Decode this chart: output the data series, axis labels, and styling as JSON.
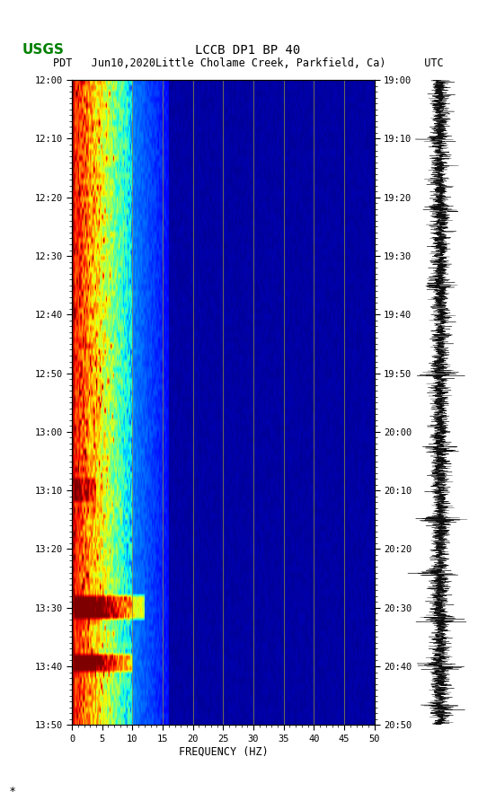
{
  "title_line1": "LCCB DP1 BP 40",
  "title_line2_pdt": "PDT",
  "title_line2_date": "Jun10,2020",
  "title_line2_loc": "Little Cholame Creek, Parkfield, Ca)",
  "title_line2_utc": "UTC",
  "left_times": [
    "12:00",
    "12:10",
    "12:20",
    "12:30",
    "12:40",
    "12:50",
    "13:00",
    "13:10",
    "13:20",
    "13:30",
    "13:40",
    "13:50"
  ],
  "right_times": [
    "19:00",
    "19:10",
    "19:20",
    "19:30",
    "19:40",
    "19:50",
    "20:00",
    "20:10",
    "20:20",
    "20:30",
    "20:40",
    "20:50"
  ],
  "freq_min": 0,
  "freq_max": 50,
  "freq_ticks": [
    0,
    5,
    10,
    15,
    20,
    25,
    30,
    35,
    40,
    45,
    50
  ],
  "freq_label": "FREQUENCY (HZ)",
  "n_time_steps": 110,
  "n_freq_steps": 250,
  "background_color": "#ffffff",
  "logo_color": "#008000",
  "spectrogram_cmap": "jet",
  "vertical_line_freqs": [
    10,
    15,
    20,
    25,
    30,
    35,
    40,
    45
  ],
  "vertical_line_color": "#888844",
  "waveform_color": "#000000",
  "fig_width": 5.52,
  "fig_height": 8.92
}
